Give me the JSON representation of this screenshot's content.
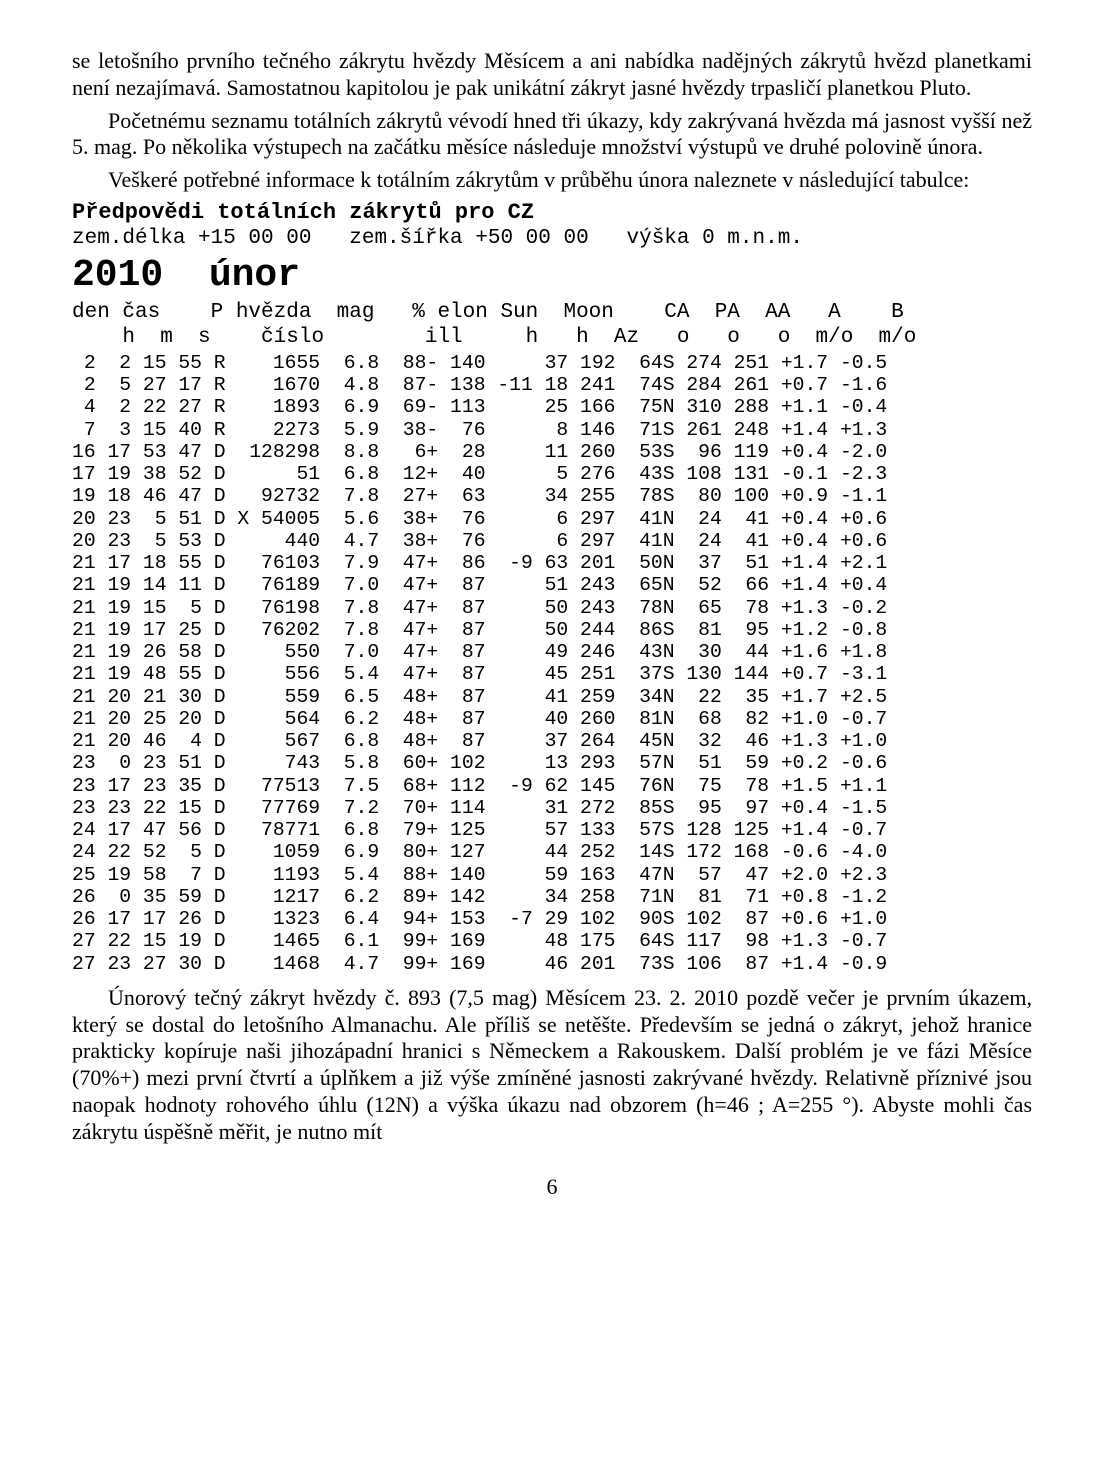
{
  "para1": "se letošního prvního tečného zákrytu hvězdy Měsícem a ani nabídka nadějných zákrytů hvězd planetkami není nezajímavá. Samostatnou kapitolou je pak unikátní zákryt jasné hvězdy trpasličí planetkou Pluto.",
  "para2": "Početnému seznamu totálních zákrytů vévodí hned tři úkazy, kdy zakrývaná hvězda má jasnost vyšší než 5. mag. Po několika výstupech na začátku měsíce následuje množství výstupů ve druhé polovině února.",
  "para3": "Veškeré potřebné informace k totálním zákrytům v průběhu února naleznete v následující tabulce:",
  "pred_heading": "Předpovědi totálních zákrytů pro CZ",
  "zem_line": "zem.délka +15 00 00   zem.šířka +50 00 00   výška 0 m.n.m.",
  "year_line": "2010  únor",
  "hdr1": "den čas    P hvězda  mag   % elon Sun  Moon    CA  PA  AA   A    B",
  "hdr2": "    h  m  s    číslo        ill     h   h  Az   o   o   o  m/o  m/o",
  "rows": [
    " 2  2 15 55 R    1655  6.8  88- 140     37 192  64S 274 251 +1.7 -0.5",
    " 2  5 27 17 R    1670  4.8  87- 138 -11 18 241  74S 284 261 +0.7 -1.6",
    " 4  2 22 27 R    1893  6.9  69- 113     25 166  75N 310 288 +1.1 -0.4",
    " 7  3 15 40 R    2273  5.9  38-  76      8 146  71S 261 248 +1.4 +1.3",
    "16 17 53 47 D  128298  8.8   6+  28     11 260  53S  96 119 +0.4 -2.0",
    "17 19 38 52 D      51  6.8  12+  40      5 276  43S 108 131 -0.1 -2.3",
    "19 18 46 47 D   92732  7.8  27+  63     34 255  78S  80 100 +0.9 -1.1",
    "20 23  5 51 D X 54005  5.6  38+  76      6 297  41N  24  41 +0.4 +0.6",
    "20 23  5 53 D     440  4.7  38+  76      6 297  41N  24  41 +0.4 +0.6",
    "21 17 18 55 D   76103  7.9  47+  86  -9 63 201  50N  37  51 +1.4 +2.1",
    "21 19 14 11 D   76189  7.0  47+  87     51 243  65N  52  66 +1.4 +0.4",
    "21 19 15  5 D   76198  7.8  47+  87     50 243  78N  65  78 +1.3 -0.2",
    "21 19 17 25 D   76202  7.8  47+  87     50 244  86S  81  95 +1.2 -0.8",
    "21 19 26 58 D     550  7.0  47+  87     49 246  43N  30  44 +1.6 +1.8",
    "21 19 48 55 D     556  5.4  47+  87     45 251  37S 130 144 +0.7 -3.1",
    "21 20 21 30 D     559  6.5  48+  87     41 259  34N  22  35 +1.7 +2.5",
    "21 20 25 20 D     564  6.2  48+  87     40 260  81N  68  82 +1.0 -0.7",
    "21 20 46  4 D     567  6.8  48+  87     37 264  45N  32  46 +1.3 +1.0",
    "23  0 23 51 D     743  5.8  60+ 102     13 293  57N  51  59 +0.2 -0.6",
    "23 17 23 35 D   77513  7.5  68+ 112  -9 62 145  76N  75  78 +1.5 +1.1",
    "23 23 22 15 D   77769  7.2  70+ 114     31 272  85S  95  97 +0.4 -1.5",
    "24 17 47 56 D   78771  6.8  79+ 125     57 133  57S 128 125 +1.4 -0.7",
    "24 22 52  5 D    1059  6.9  80+ 127     44 252  14S 172 168 -0.6 -4.0",
    "25 19 58  7 D    1193  5.4  88+ 140     59 163  47N  57  47 +2.0 +2.3",
    "26  0 35 59 D    1217  6.2  89+ 142     34 258  71N  81  71 +0.8 -1.2",
    "26 17 17 26 D    1323  6.4  94+ 153  -7 29 102  90S 102  87 +0.6 +1.0",
    "27 22 15 19 D    1465  6.1  99+ 169     48 175  64S 117  98 +1.3 -0.7",
    "27 23 27 30 D    1468  4.7  99+ 169     46 201  73S 106  87 +1.4 -0.9"
  ],
  "para4": "Únorový tečný zákryt hvězdy č. 893 (7,5 mag) Měsícem 23. 2. 2010 pozdě večer je prvním úkazem, který se dostal do letošního Almanachu. Ale příliš se netěšte. Především se jedná o zákryt, jehož hranice prakticky kopíruje naši jihozápadní hranici s Německem a Rakouskem. Další problém je ve fázi Měsíce (70%+) mezi první čtvrtí a úplňkem a již výše zmíněné jasnosti zakrývané hvězdy. Relativně příznivé jsou naopak hodnoty rohového úhlu (12N) a výška úkazu nad obzorem (h=46 ; A=255 °). Abyste mohli čas zákrytu úspěšně měřit, je nutno mít",
  "pagenum": "6"
}
